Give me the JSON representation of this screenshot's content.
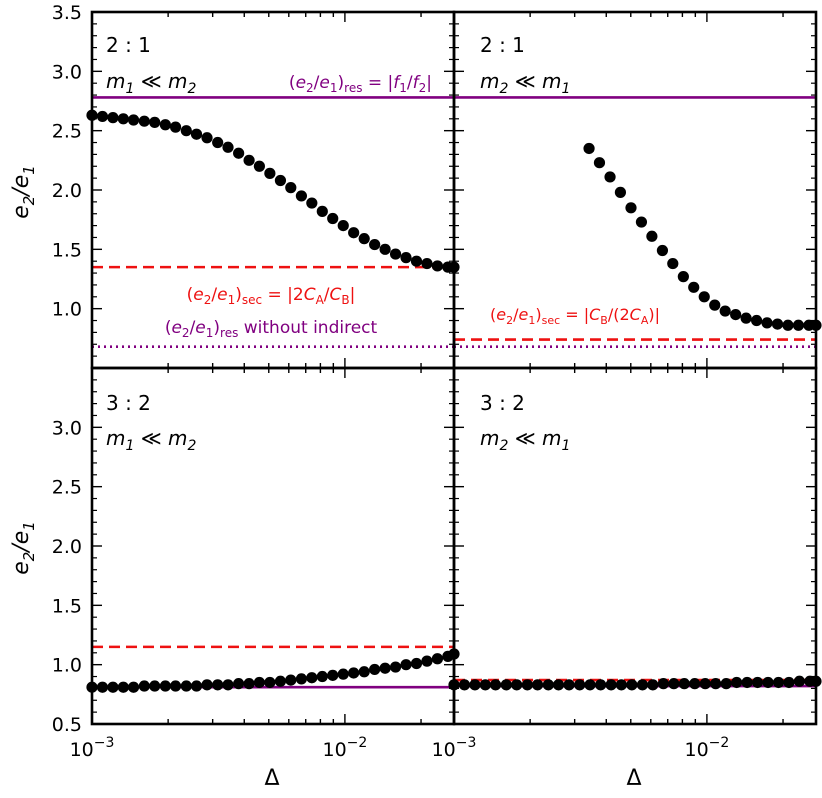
{
  "figure": {
    "xlabel": "Δ",
    "ylabel": "e2/e1"
  },
  "axes": {
    "x_scale": "log",
    "xlim": [
      0.001,
      0.027
    ],
    "ylim": [
      0.5,
      3.5
    ],
    "x_major_ticks": [
      0.001,
      0.01
    ],
    "x_tick_labels": [
      {
        "base": "10",
        "exp": "−3"
      },
      {
        "base": "10",
        "exp": "−2"
      }
    ],
    "y_tick_labels_top": [
      "1.0",
      "1.5",
      "2.0",
      "2.5",
      "3.0",
      "3.5"
    ],
    "y_tick_labels_bottom": [
      "0.5",
      "1.0",
      "1.5",
      "2.0",
      "2.5",
      "3.0"
    ],
    "y_major_ticks_top": [
      1.0,
      1.5,
      2.0,
      2.5,
      3.0,
      3.5
    ],
    "y_major_ticks_bottom": [
      0.5,
      1.0,
      1.5,
      2.0,
      2.5,
      3.0
    ],
    "grid": false
  },
  "colors": {
    "points": "#000000",
    "secular": "#ee1111",
    "resonant": "#800080"
  },
  "chart_data": [
    {
      "type": "scatter",
      "panel": "top-left",
      "resonance_label": "2 : 1",
      "mass_label": {
        "a": "m",
        "a_sub": "1",
        "rel": "≪",
        "b": "m",
        "b_sub": "2"
      },
      "points": {
        "x": [
          0.001,
          0.0011,
          0.00121,
          0.00133,
          0.00146,
          0.00161,
          0.00177,
          0.00195,
          0.00214,
          0.00236,
          0.00259,
          0.00285,
          0.00314,
          0.00345,
          0.0038,
          0.00418,
          0.00459,
          0.00505,
          0.00556,
          0.00611,
          0.00673,
          0.0074,
          0.00814,
          0.00895,
          0.00985,
          0.01083,
          0.01192,
          0.01311,
          0.01442,
          0.01586,
          0.01745,
          0.01919,
          0.02111,
          0.02322,
          0.02554,
          0.027
        ],
        "y": [
          2.63,
          2.62,
          2.61,
          2.6,
          2.59,
          2.58,
          2.57,
          2.55,
          2.53,
          2.5,
          2.47,
          2.44,
          2.4,
          2.36,
          2.31,
          2.25,
          2.2,
          2.14,
          2.08,
          2.02,
          1.95,
          1.89,
          1.82,
          1.76,
          1.7,
          1.64,
          1.59,
          1.54,
          1.5,
          1.46,
          1.43,
          1.4,
          1.38,
          1.36,
          1.35,
          1.35
        ]
      },
      "lines": [
        {
          "y": 2.78,
          "style": "solid",
          "color": "resonant"
        },
        {
          "y": 1.35,
          "style": "dashed",
          "color": "secular"
        },
        {
          "y": 0.68,
          "style": "dotted",
          "color": "resonant"
        }
      ],
      "annotations": {
        "res": "(e2/e1)res = |f1/f2|",
        "sec": "(e2/e1)sec = |2CA/CB|",
        "indirect": "(e2/e1)res without indirect"
      }
    },
    {
      "type": "scatter",
      "panel": "top-right",
      "resonance_label": "2 : 1",
      "mass_label": {
        "a": "m",
        "a_sub": "2",
        "rel": "≪",
        "b": "m",
        "b_sub": "1"
      },
      "points": {
        "x": [
          0.00342,
          0.00376,
          0.00414,
          0.00455,
          0.00501,
          0.00551,
          0.00606,
          0.00667,
          0.00733,
          0.00807,
          0.00887,
          0.00976,
          0.01074,
          0.01181,
          0.01299,
          0.01429,
          0.01572,
          0.01729,
          0.01902,
          0.02092,
          0.02301,
          0.02531,
          0.027
        ],
        "y": [
          2.35,
          2.23,
          2.11,
          1.98,
          1.85,
          1.73,
          1.61,
          1.49,
          1.38,
          1.27,
          1.18,
          1.1,
          1.03,
          0.98,
          0.95,
          0.92,
          0.9,
          0.88,
          0.87,
          0.86,
          0.86,
          0.86,
          0.86
        ]
      },
      "lines": [
        {
          "y": 2.78,
          "style": "solid",
          "color": "resonant"
        },
        {
          "y": 0.74,
          "style": "dashed",
          "color": "secular"
        },
        {
          "y": 0.68,
          "style": "dotted",
          "color": "resonant"
        }
      ],
      "annotations": {
        "sec": "(e2/e1)sec = |CB/(2CA)|"
      }
    },
    {
      "type": "scatter",
      "panel": "bottom-left",
      "resonance_label": "3 : 2",
      "mass_label": {
        "a": "m",
        "a_sub": "1",
        "rel": "≪",
        "b": "m",
        "b_sub": "2"
      },
      "points": {
        "x": [
          0.001,
          0.0011,
          0.00121,
          0.00133,
          0.00146,
          0.00161,
          0.00177,
          0.00195,
          0.00214,
          0.00236,
          0.00259,
          0.00285,
          0.00314,
          0.00345,
          0.0038,
          0.00418,
          0.00459,
          0.00505,
          0.00556,
          0.00611,
          0.00673,
          0.0074,
          0.00814,
          0.00895,
          0.00985,
          0.01083,
          0.01192,
          0.01311,
          0.01442,
          0.01586,
          0.01745,
          0.01919,
          0.02111,
          0.02322,
          0.02554,
          0.027
        ],
        "y": [
          0.81,
          0.81,
          0.81,
          0.81,
          0.81,
          0.82,
          0.82,
          0.82,
          0.82,
          0.82,
          0.82,
          0.83,
          0.83,
          0.83,
          0.84,
          0.84,
          0.85,
          0.85,
          0.86,
          0.87,
          0.88,
          0.89,
          0.9,
          0.91,
          0.92,
          0.93,
          0.94,
          0.96,
          0.97,
          0.98,
          1.0,
          1.01,
          1.03,
          1.05,
          1.07,
          1.09
        ]
      },
      "lines": [
        {
          "y": 0.81,
          "style": "solid",
          "color": "resonant"
        },
        {
          "y": 1.15,
          "style": "dashed",
          "color": "secular"
        }
      ]
    },
    {
      "type": "scatter",
      "panel": "bottom-right",
      "resonance_label": "3 : 2",
      "mass_label": {
        "a": "m",
        "a_sub": "2",
        "rel": "≪",
        "b": "m",
        "b_sub": "1"
      },
      "points": {
        "x": [
          0.001,
          0.0011,
          0.00121,
          0.00133,
          0.00146,
          0.00161,
          0.00177,
          0.00195,
          0.00214,
          0.00236,
          0.00259,
          0.00285,
          0.00314,
          0.00345,
          0.0038,
          0.00418,
          0.00459,
          0.00505,
          0.00556,
          0.00611,
          0.00673,
          0.0074,
          0.00814,
          0.00895,
          0.00985,
          0.01083,
          0.01192,
          0.01311,
          0.01442,
          0.01586,
          0.01745,
          0.01919,
          0.02111,
          0.02322,
          0.02554,
          0.027
        ],
        "y": [
          0.83,
          0.83,
          0.83,
          0.83,
          0.83,
          0.83,
          0.83,
          0.83,
          0.83,
          0.83,
          0.83,
          0.83,
          0.83,
          0.83,
          0.83,
          0.83,
          0.83,
          0.83,
          0.83,
          0.83,
          0.84,
          0.84,
          0.84,
          0.84,
          0.84,
          0.84,
          0.84,
          0.85,
          0.85,
          0.85,
          0.85,
          0.85,
          0.85,
          0.86,
          0.86,
          0.86
        ]
      },
      "lines": [
        {
          "y": 0.82,
          "style": "solid",
          "color": "resonant"
        },
        {
          "y": 0.87,
          "style": "dashed",
          "color": "secular"
        }
      ]
    }
  ]
}
